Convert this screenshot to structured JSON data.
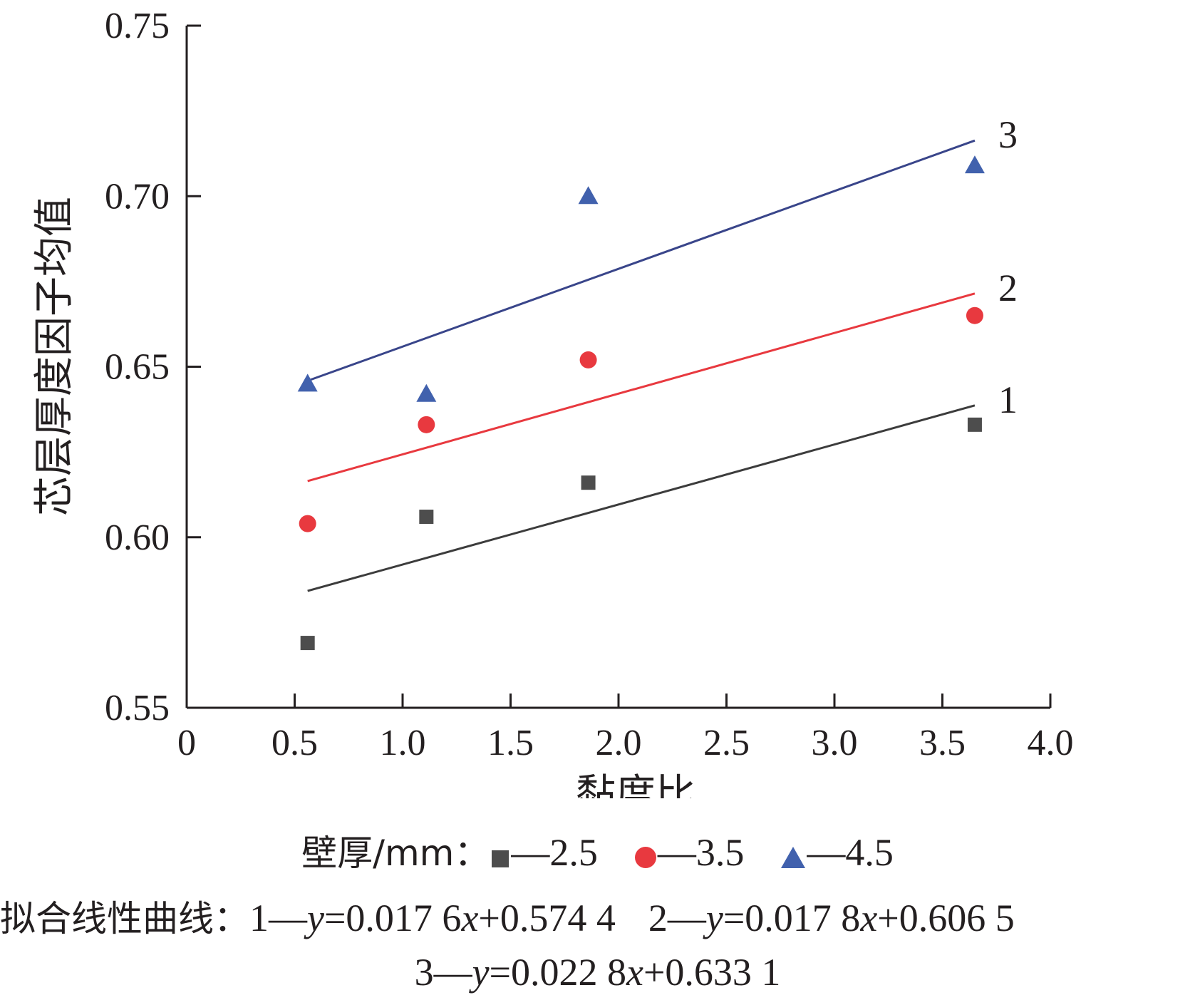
{
  "chart_data": {
    "type": "scatter",
    "xlabel": "黏度比",
    "ylabel": "芯层厚度因子均值",
    "xlim": [
      0,
      4.0
    ],
    "ylim": [
      0.55,
      0.75
    ],
    "x_ticks": [
      "0",
      "0.5",
      "1.0",
      "1.5",
      "2.0",
      "2.5",
      "3.0",
      "3.5",
      "4.0"
    ],
    "x_tick_values": [
      0,
      0.5,
      1.0,
      1.5,
      2.0,
      2.5,
      3.0,
      3.5,
      4.0
    ],
    "y_ticks": [
      "0.55",
      "0.60",
      "0.65",
      "0.70",
      "0.75"
    ],
    "y_tick_values": [
      0.55,
      0.6,
      0.65,
      0.7,
      0.75
    ],
    "x": [
      0.56,
      1.11,
      1.86,
      3.65
    ],
    "series": [
      {
        "name": "2.5",
        "marker": "square",
        "color": "#4d4d4d",
        "values": [
          0.569,
          0.606,
          0.616,
          0.633
        ]
      },
      {
        "name": "3.5",
        "marker": "circle",
        "color": "#e8393f",
        "values": [
          0.604,
          0.633,
          0.652,
          0.665
        ]
      },
      {
        "name": "4.5",
        "marker": "triangle",
        "color": "#4161ad",
        "values": [
          0.645,
          0.642,
          0.7,
          0.709
        ]
      }
    ],
    "fit_lines": [
      {
        "label": "1",
        "color": "#3c3c3c",
        "slope": 0.0176,
        "intercept": 0.5744,
        "x_range": [
          0.56,
          3.65
        ]
      },
      {
        "label": "2",
        "color": "#e8393f",
        "slope": 0.0178,
        "intercept": 0.6065,
        "x_range": [
          0.56,
          3.65
        ]
      },
      {
        "label": "3",
        "color": "#39458a",
        "slope": 0.0228,
        "intercept": 0.6331,
        "x_range": [
          0.56,
          3.65
        ]
      }
    ]
  },
  "legend": {
    "title": "壁厚/mm：",
    "items": [
      {
        "label": "—2.5",
        "marker": "square",
        "color": "#4d4d4d"
      },
      {
        "label": "—3.5",
        "marker": "circle",
        "color": "#e8393f"
      },
      {
        "label": "—4.5",
        "marker": "triangle",
        "color": "#4161ad"
      }
    ]
  },
  "fit_caption": {
    "title": "拟合线性曲线：",
    "eq1": {
      "prefix": "1—",
      "var": "y",
      "mid": "=0.017 6",
      "var2": "x",
      "rest": "+0.574 4"
    },
    "eq2": {
      "prefix": "2—",
      "var": "y",
      "mid": "=0.017 8",
      "var2": "x",
      "rest": "+0.606 5"
    },
    "eq3": {
      "prefix": "3—",
      "var": "y",
      "mid": "=0.022 8",
      "var2": "x",
      "rest": "+0.633 1"
    }
  }
}
